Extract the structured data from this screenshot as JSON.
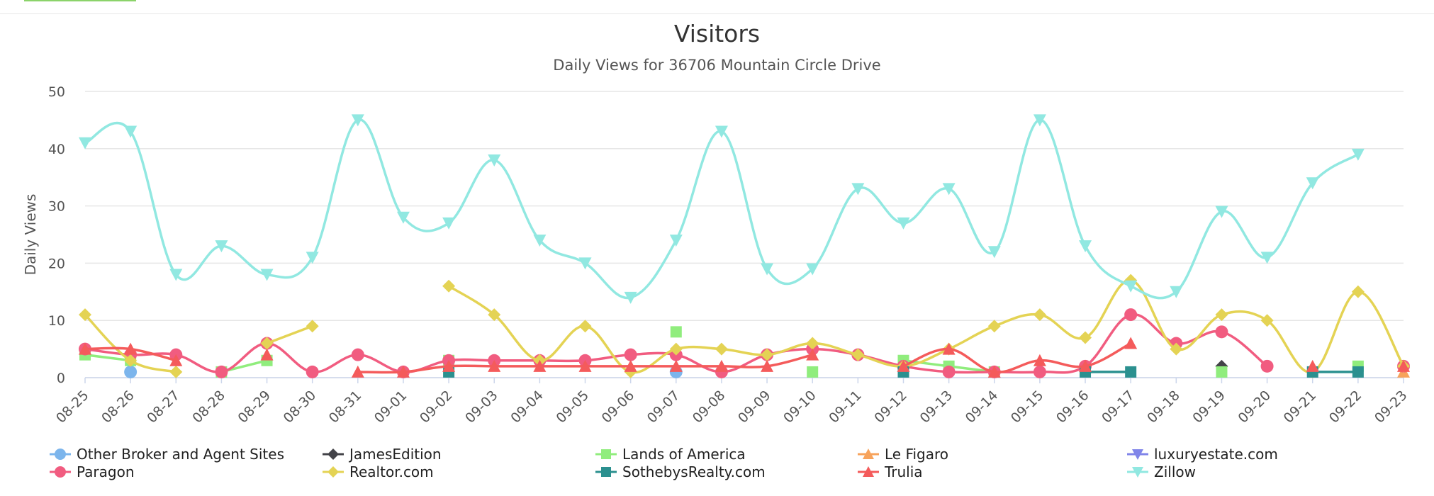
{
  "chart_data": {
    "type": "line",
    "title": "Visitors",
    "subtitle": "Daily Views for 36706 Mountain Circle Drive",
    "xlabel": "",
    "ylabel": "Daily Views",
    "ylim": [
      0,
      50
    ],
    "yticks": [
      0,
      10,
      20,
      30,
      40,
      50
    ],
    "grid": true,
    "legend_position": "bottom",
    "categories": [
      "08-25",
      "08-26",
      "08-27",
      "08-28",
      "08-29",
      "08-30",
      "08-31",
      "09-01",
      "09-02",
      "09-03",
      "09-04",
      "09-05",
      "09-06",
      "09-07",
      "09-08",
      "09-09",
      "09-10",
      "09-11",
      "09-12",
      "09-13",
      "09-14",
      "09-15",
      "09-16",
      "09-17",
      "09-18",
      "09-19",
      "09-20",
      "09-21",
      "09-22",
      "09-23"
    ],
    "series": [
      {
        "name": "Other Broker and Agent Sites",
        "color": "#7cb5ec",
        "marker": "circle",
        "values": [
          null,
          1,
          null,
          null,
          null,
          null,
          null,
          null,
          null,
          null,
          null,
          null,
          null,
          1,
          null,
          null,
          null,
          null,
          null,
          null,
          null,
          null,
          null,
          null,
          null,
          null,
          null,
          null,
          null,
          null
        ]
      },
      {
        "name": "JamesEdition",
        "color": "#434348",
        "marker": "diamond",
        "values": [
          null,
          null,
          null,
          null,
          null,
          null,
          null,
          null,
          null,
          null,
          null,
          null,
          null,
          null,
          null,
          null,
          null,
          null,
          null,
          null,
          1,
          null,
          null,
          null,
          null,
          2,
          null,
          null,
          null,
          null
        ]
      },
      {
        "name": "Lands of America",
        "color": "#90ed7d",
        "marker": "square",
        "values": [
          4,
          3,
          null,
          1,
          3,
          null,
          null,
          null,
          3,
          null,
          null,
          null,
          null,
          8,
          null,
          null,
          1,
          null,
          3,
          2,
          1,
          null,
          null,
          null,
          null,
          1,
          null,
          null,
          2,
          null
        ]
      },
      {
        "name": "Le Figaro",
        "color": "#f7a35c",
        "marker": "triangle",
        "values": [
          null,
          null,
          null,
          null,
          null,
          null,
          null,
          null,
          null,
          null,
          null,
          null,
          null,
          null,
          null,
          null,
          null,
          null,
          null,
          null,
          null,
          null,
          null,
          null,
          null,
          null,
          null,
          null,
          null,
          1
        ]
      },
      {
        "name": "luxuryestate.com",
        "color": "#8085e9",
        "marker": "triangle-down",
        "values": [
          null,
          null,
          null,
          null,
          null,
          null,
          null,
          null,
          null,
          null,
          null,
          null,
          null,
          null,
          null,
          null,
          null,
          null,
          null,
          null,
          null,
          null,
          null,
          null,
          null,
          null,
          null,
          null,
          null,
          null
        ]
      },
      {
        "name": "Paragon",
        "color": "#f15c80",
        "marker": "circle",
        "values": [
          5,
          4,
          4,
          1,
          6,
          1,
          4,
          1,
          3,
          3,
          3,
          3,
          4,
          4,
          1,
          4,
          5,
          4,
          2,
          1,
          1,
          1,
          2,
          11,
          6,
          8,
          2,
          null,
          null,
          2
        ]
      },
      {
        "name": "Realtor.com",
        "color": "#e4d354",
        "marker": "diamond",
        "values": [
          11,
          3,
          1,
          null,
          6,
          9,
          null,
          null,
          16,
          11,
          3,
          9,
          1,
          5,
          5,
          4,
          6,
          4,
          2,
          5,
          9,
          11,
          7,
          17,
          5,
          11,
          10,
          1,
          15,
          2
        ]
      },
      {
        "name": "SothebysRealty.com",
        "color": "#2b908f",
        "marker": "square",
        "values": [
          null,
          null,
          null,
          null,
          null,
          null,
          null,
          null,
          1,
          null,
          null,
          null,
          null,
          null,
          null,
          null,
          null,
          null,
          1,
          null,
          null,
          null,
          1,
          1,
          null,
          null,
          null,
          1,
          1,
          null
        ]
      },
      {
        "name": "Trulia",
        "color": "#f45b5b",
        "marker": "triangle",
        "values": [
          5,
          5,
          3,
          null,
          4,
          null,
          1,
          1,
          2,
          2,
          2,
          2,
          2,
          2,
          2,
          2,
          4,
          null,
          2,
          5,
          1,
          3,
          2,
          6,
          null,
          null,
          null,
          2,
          null,
          2
        ]
      },
      {
        "name": "Zillow",
        "color": "#91e8e1",
        "marker": "triangle-down",
        "values": [
          41,
          43,
          18,
          23,
          18,
          21,
          45,
          28,
          27,
          38,
          24,
          20,
          14,
          24,
          43,
          19,
          19,
          33,
          27,
          33,
          22,
          45,
          23,
          16,
          15,
          29,
          21,
          34,
          39,
          null
        ]
      }
    ]
  }
}
